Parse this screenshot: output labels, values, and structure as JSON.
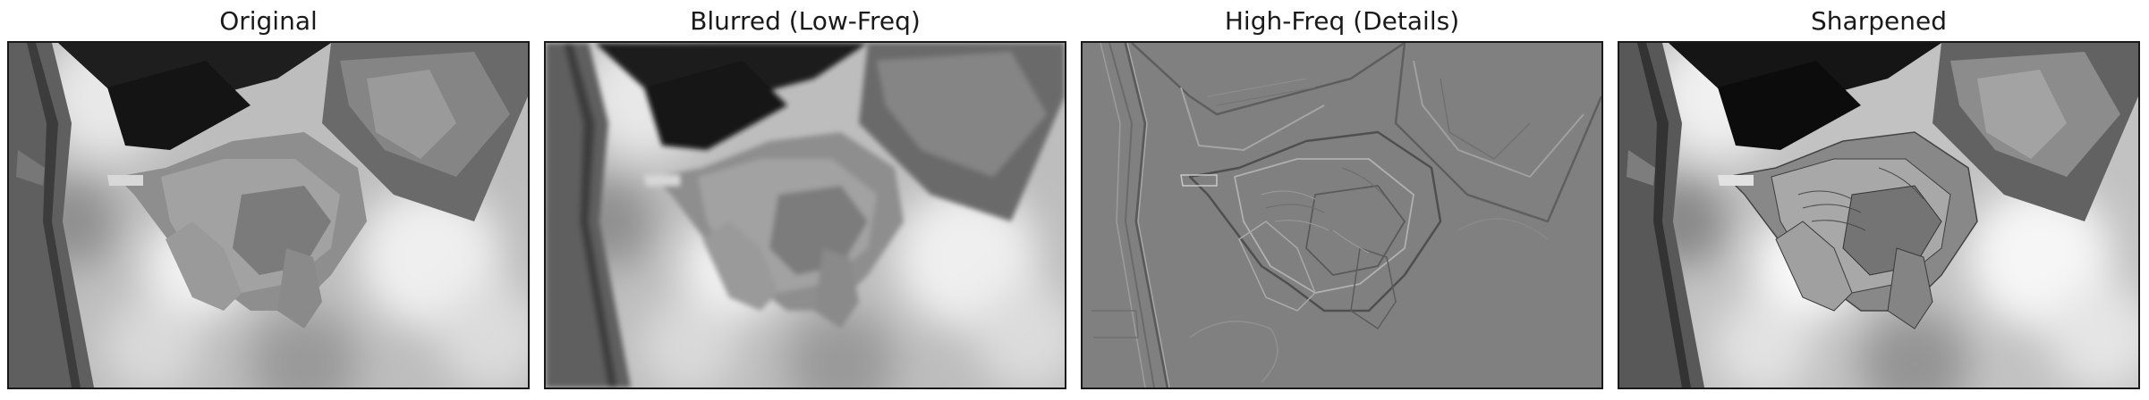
{
  "figure": {
    "panels": [
      {
        "title": "Original",
        "variant": "original"
      },
      {
        "title": "Blurred (Low-Freq)",
        "variant": "blurred"
      },
      {
        "title": "High-Freq (Details)",
        "variant": "highfreq"
      },
      {
        "title": "Sharpened",
        "variant": "sharpened"
      }
    ]
  }
}
